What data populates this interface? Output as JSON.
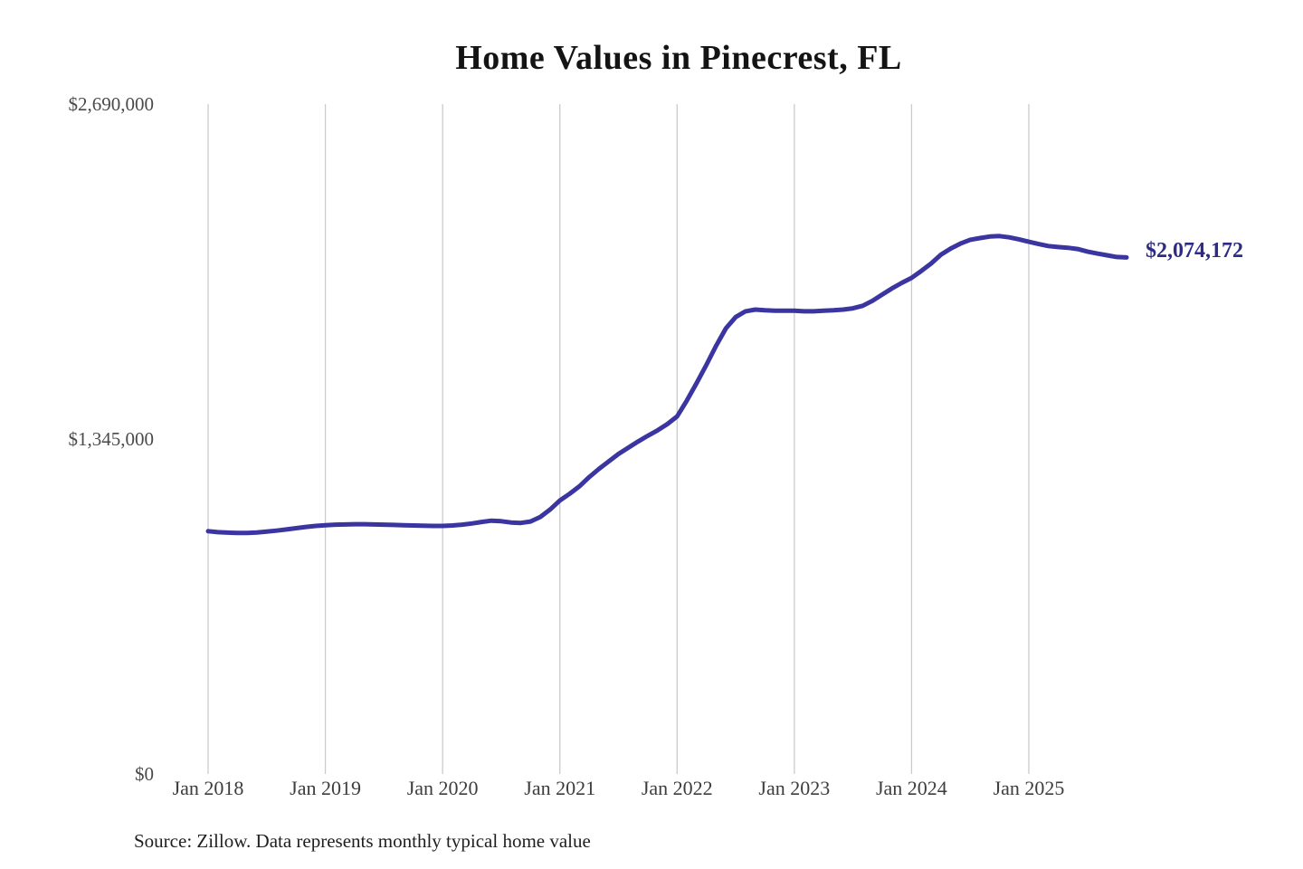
{
  "chart_data": {
    "type": "line",
    "title": "Home Values in Pinecrest, FL",
    "source": "Source: Zillow. Data represents monthly typical home value",
    "end_label": "$2,074,172",
    "latest_value": 2074172,
    "ylim": [
      0,
      2690000
    ],
    "y_tick_labels": [
      "$0",
      "$1,345,000",
      "$2,690,000"
    ],
    "x_tick_labels": [
      "Jan 2018",
      "Jan 2019",
      "Jan 2020",
      "Jan 2021",
      "Jan 2022",
      "Jan 2023",
      "Jan 2024",
      "Jan 2025"
    ],
    "line_color": "#3a35a0",
    "end_label_color": "#2e2b87",
    "grid_color": "#cbcbcb",
    "grid": "vertical-only",
    "legend": "none",
    "x": [
      "Jan 2018",
      "Feb 2018",
      "Mar 2018",
      "Apr 2018",
      "May 2018",
      "Jun 2018",
      "Jul 2018",
      "Aug 2018",
      "Sep 2018",
      "Oct 2018",
      "Nov 2018",
      "Dec 2018",
      "Jan 2019",
      "Feb 2019",
      "Mar 2019",
      "Apr 2019",
      "May 2019",
      "Jun 2019",
      "Jul 2019",
      "Aug 2019",
      "Sep 2019",
      "Oct 2019",
      "Nov 2019",
      "Dec 2019",
      "Jan 2020",
      "Feb 2020",
      "Mar 2020",
      "Apr 2020",
      "May 2020",
      "Jun 2020",
      "Jul 2020",
      "Aug 2020",
      "Sep 2020",
      "Oct 2020",
      "Nov 2020",
      "Dec 2020",
      "Jan 2021",
      "Feb 2021",
      "Mar 2021",
      "Apr 2021",
      "May 2021",
      "Jun 2021",
      "Jul 2021",
      "Aug 2021",
      "Sep 2021",
      "Oct 2021",
      "Nov 2021",
      "Dec 2021",
      "Jan 2022",
      "Feb 2022",
      "Mar 2022",
      "Apr 2022",
      "May 2022",
      "Jun 2022",
      "Jul 2022",
      "Aug 2022",
      "Sep 2022",
      "Oct 2022",
      "Nov 2022",
      "Dec 2022",
      "Jan 2023",
      "Feb 2023",
      "Mar 2023",
      "Apr 2023",
      "May 2023",
      "Jun 2023",
      "Jul 2023",
      "Aug 2023",
      "Sep 2023",
      "Oct 2023",
      "Nov 2023",
      "Dec 2023",
      "Jan 2024",
      "Feb 2024",
      "Mar 2024",
      "Apr 2024",
      "May 2024",
      "Jun 2024",
      "Jul 2024",
      "Aug 2024",
      "Sep 2024",
      "Oct 2024",
      "Nov 2024",
      "Dec 2024",
      "Jan 2025",
      "Feb 2025",
      "Mar 2025",
      "Apr 2025",
      "May 2025",
      "Jun 2025",
      "Jul 2025",
      "Aug 2025",
      "Sep 2025",
      "Oct 2025",
      "Nov 2025"
    ],
    "values": [
      975000,
      971000,
      969000,
      968000,
      968000,
      970000,
      973000,
      977000,
      982000,
      987000,
      992000,
      996000,
      999000,
      1001000,
      1002000,
      1003000,
      1003000,
      1002000,
      1001000,
      1000000,
      999000,
      998000,
      997000,
      996000,
      996000,
      998000,
      1001000,
      1006000,
      1012000,
      1017000,
      1015000,
      1010000,
      1008000,
      1014000,
      1032000,
      1062000,
      1098000,
      1125000,
      1155000,
      1192000,
      1225000,
      1255000,
      1285000,
      1310000,
      1335000,
      1358000,
      1380000,
      1405000,
      1436000,
      1500000,
      1570000,
      1643000,
      1720000,
      1790000,
      1835000,
      1858000,
      1865000,
      1862000,
      1860000,
      1860000,
      1860000,
      1858000,
      1858000,
      1860000,
      1862000,
      1865000,
      1870000,
      1880000,
      1900000,
      1925000,
      1950000,
      1972000,
      1992000,
      2020000,
      2050000,
      2085000,
      2110000,
      2130000,
      2145000,
      2152000,
      2158000,
      2160000,
      2155000,
      2147000,
      2137000,
      2128000,
      2120000,
      2116000,
      2113000,
      2108000,
      2098000,
      2090000,
      2083000,
      2076000,
      2074172
    ]
  }
}
